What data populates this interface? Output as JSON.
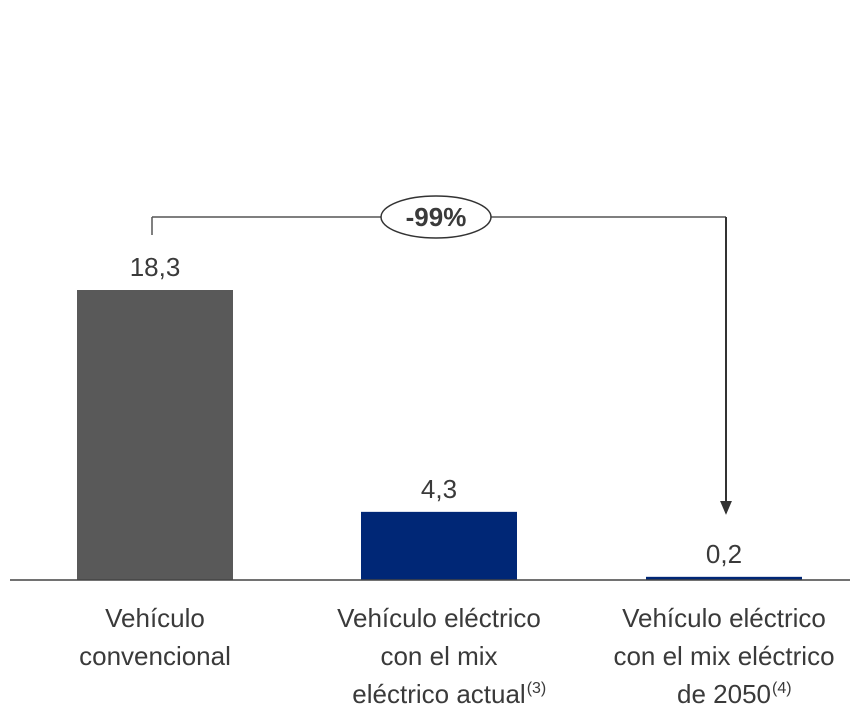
{
  "chart_data": {
    "type": "bar",
    "categories": [
      [
        "Vehículo",
        "convencional"
      ],
      [
        "Vehículo eléctrico",
        "con el mix",
        "eléctrico actual"
      ],
      [
        "Vehículo eléctrico",
        "con el mix eléctrico",
        "de 2050"
      ]
    ],
    "category_footnotes": [
      "",
      "(3)",
      "(4)"
    ],
    "values": [
      18.3,
      4.3,
      0.2
    ],
    "value_labels": [
      "18,3",
      "4,3",
      "0,2"
    ],
    "bar_colors": [
      "#595959",
      "#002776",
      "#002776"
    ],
    "ylim": [
      0,
      18.3
    ],
    "title": "",
    "xlabel": "",
    "ylabel": "",
    "grid": false,
    "annotation": {
      "label": "-99%",
      "from_category": 0,
      "to_category": 2
    }
  }
}
